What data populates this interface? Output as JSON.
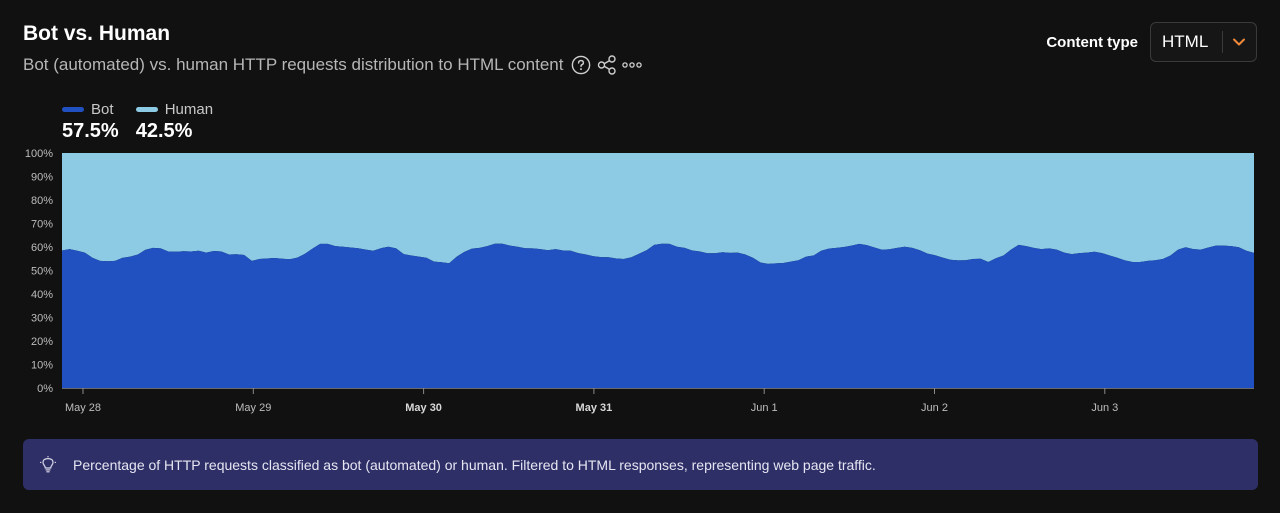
{
  "header": {
    "title": "Bot vs. Human",
    "subtitle": "Bot (automated) vs. human HTTP requests distribution to HTML content"
  },
  "icons": {
    "help": "question-circle-icon",
    "share": "share-icon",
    "more": "more-horizontal-icon",
    "chevron": "chevron-down-icon",
    "info": "lightbulb-icon"
  },
  "controls": {
    "content_type_label": "Content type",
    "content_type_value": "HTML"
  },
  "colors": {
    "bot": "#2150c0",
    "human": "#8dcae3",
    "chevron": "#f0883a"
  },
  "legend": [
    {
      "name": "Bot",
      "value": "57.5%"
    },
    {
      "name": "Human",
      "value": "42.5%"
    }
  ],
  "chart_data": {
    "type": "area",
    "stacked": true,
    "ylim": [
      0,
      100
    ],
    "y_ticks": [
      "0%",
      "10%",
      "20%",
      "30%",
      "40%",
      "50%",
      "60%",
      "70%",
      "80%",
      "90%",
      "100%"
    ],
    "x_ticks": [
      {
        "label": "May 28",
        "bold": false
      },
      {
        "label": "May 29",
        "bold": false
      },
      {
        "label": "May 30",
        "bold": true
      },
      {
        "label": "May 31",
        "bold": true
      },
      {
        "label": "Jun 1",
        "bold": false
      },
      {
        "label": "Jun 2",
        "bold": false
      },
      {
        "label": "Jun 3",
        "bold": false
      }
    ],
    "series": [
      {
        "name": "Bot",
        "values": [
          58.5,
          59.1,
          58.4,
          57.6,
          55.4,
          54.1,
          53.9,
          54.1,
          55.4,
          55.9,
          56.8,
          58.8,
          59.6,
          59.4,
          58.1,
          58.0,
          58.2,
          58.1,
          58.4,
          57.6,
          58.3,
          58.1,
          56.8,
          56.9,
          56.6,
          54.1,
          54.9,
          55.1,
          55.3,
          55.0,
          54.8,
          55.5,
          57.1,
          59.3,
          61.3,
          61.3,
          60.4,
          60.1,
          59.8,
          59.5,
          58.9,
          58.4,
          59.5,
          60.1,
          59.4,
          57.0,
          56.4,
          55.9,
          55.4,
          53.8,
          53.5,
          53.1,
          55.9,
          57.9,
          59.3,
          59.6,
          60.4,
          61.4,
          61.4,
          60.6,
          60.1,
          59.5,
          59.4,
          59.1,
          58.6,
          59.1,
          58.5,
          58.4,
          57.4,
          56.8,
          56.1,
          55.7,
          55.6,
          55.1,
          54.9,
          55.6,
          57.1,
          58.6,
          60.9,
          61.4,
          61.3,
          60.1,
          59.6,
          58.5,
          58.1,
          57.3,
          57.3,
          57.8,
          57.5,
          57.6,
          56.8,
          55.4,
          53.4,
          52.8,
          53.0,
          53.2,
          53.8,
          54.4,
          55.9,
          56.4,
          58.4,
          59.3,
          59.6,
          60.0,
          60.6,
          61.3,
          60.8,
          59.8,
          58.8,
          59.0,
          59.6,
          60.1,
          59.6,
          58.6,
          57.2,
          56.5,
          55.5,
          54.6,
          54.3,
          54.4,
          54.9,
          55.0,
          53.6,
          55.2,
          56.4,
          58.9,
          60.9,
          60.4,
          59.6,
          59.1,
          59.4,
          58.9,
          57.6,
          57.0,
          57.4,
          57.6,
          58.0,
          57.4,
          56.4,
          55.4,
          54.3,
          53.6,
          53.6,
          54.1,
          54.4,
          54.9,
          56.4,
          58.9,
          59.9,
          59.1,
          58.9,
          59.8,
          60.6,
          60.6,
          60.4,
          59.9,
          58.4,
          57.5
        ]
      },
      {
        "name": "Human",
        "values": [
          41.5,
          40.9,
          41.6,
          42.4,
          44.6,
          45.9,
          46.1,
          45.9,
          44.6,
          44.1,
          43.2,
          41.2,
          40.4,
          40.6,
          41.9,
          42.0,
          41.8,
          41.9,
          41.6,
          42.4,
          41.7,
          41.9,
          43.2,
          43.1,
          43.4,
          45.9,
          45.1,
          44.9,
          44.7,
          45.0,
          45.2,
          44.5,
          42.9,
          40.7,
          38.7,
          38.7,
          39.6,
          39.9,
          40.2,
          40.5,
          41.1,
          41.6,
          40.5,
          39.9,
          40.6,
          43.0,
          43.6,
          44.1,
          44.6,
          46.2,
          46.5,
          46.9,
          44.1,
          42.1,
          40.7,
          40.4,
          39.6,
          38.6,
          38.6,
          39.4,
          39.9,
          40.5,
          40.6,
          40.9,
          41.4,
          40.9,
          41.5,
          41.6,
          42.6,
          43.2,
          43.9,
          44.3,
          44.4,
          44.9,
          45.1,
          44.4,
          42.9,
          41.4,
          39.1,
          38.6,
          38.7,
          39.9,
          40.4,
          41.5,
          41.9,
          42.7,
          42.7,
          42.2,
          42.5,
          42.4,
          43.2,
          44.6,
          46.6,
          47.2,
          47.0,
          46.8,
          46.2,
          45.6,
          44.1,
          43.6,
          41.6,
          40.7,
          40.4,
          40.0,
          39.4,
          38.7,
          39.2,
          40.2,
          41.2,
          41.0,
          40.4,
          39.9,
          40.4,
          41.4,
          42.8,
          43.5,
          44.5,
          45.4,
          45.7,
          45.6,
          45.1,
          45.0,
          46.4,
          44.8,
          43.6,
          41.1,
          39.1,
          39.6,
          40.4,
          40.9,
          40.6,
          41.1,
          42.4,
          43.0,
          42.6,
          42.4,
          42.0,
          42.6,
          43.6,
          44.6,
          45.7,
          46.4,
          46.4,
          45.9,
          45.6,
          45.1,
          43.6,
          41.1,
          40.1,
          40.9,
          41.1,
          40.2,
          39.4,
          39.4,
          39.6,
          40.1,
          41.6,
          42.5
        ]
      }
    ],
    "grid": false
  },
  "info": {
    "text": "Percentage of HTTP requests classified as bot (automated) or human. Filtered to HTML responses, representing web page traffic."
  }
}
